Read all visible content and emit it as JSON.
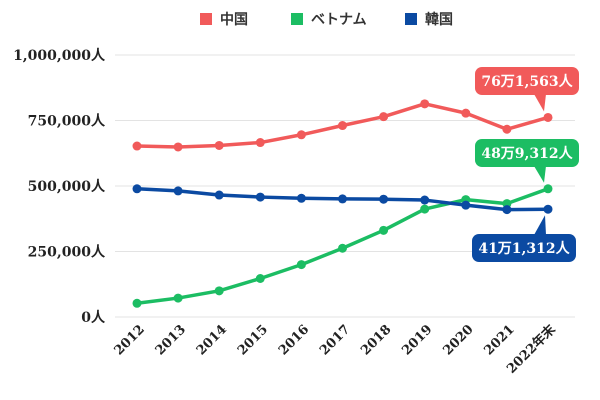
{
  "chart_data": {
    "type": "line",
    "categories": [
      "2012",
      "2013",
      "2014",
      "2015",
      "2016",
      "2017",
      "2018",
      "2019",
      "2020",
      "2021",
      "2022年末"
    ],
    "ylim": [
      0,
      1000000
    ],
    "yticks": [
      0,
      250000,
      500000,
      750000,
      1000000
    ],
    "ytick_labels": [
      "0人",
      "250,000人",
      "500,000人",
      "750,000人",
      "1,000,000人"
    ],
    "grid": true,
    "legend_position": "top-center",
    "series": [
      {
        "name": "中国",
        "color": "#f15a5a",
        "values": [
          652595,
          649078,
          654777,
          665847,
          695522,
          730890,
          764720,
          813675,
          778112,
          716606,
          761563
        ],
        "callout": "76万1,563人"
      },
      {
        "name": "ベトナム",
        "color": "#1cbd63",
        "values": [
          52367,
          72256,
          99865,
          146956,
          199990,
          262405,
          330835,
          411968,
          448053,
          432934,
          489312
        ],
        "callout": "48万9,312人"
      },
      {
        "name": "韓国",
        "color": "#0b4aa2",
        "values": [
          489431,
          481249,
          465477,
          457772,
          453096,
          450663,
          449634,
          446364,
          426908,
          409855,
          411312
        ],
        "callout": "41万1,312人"
      }
    ]
  }
}
